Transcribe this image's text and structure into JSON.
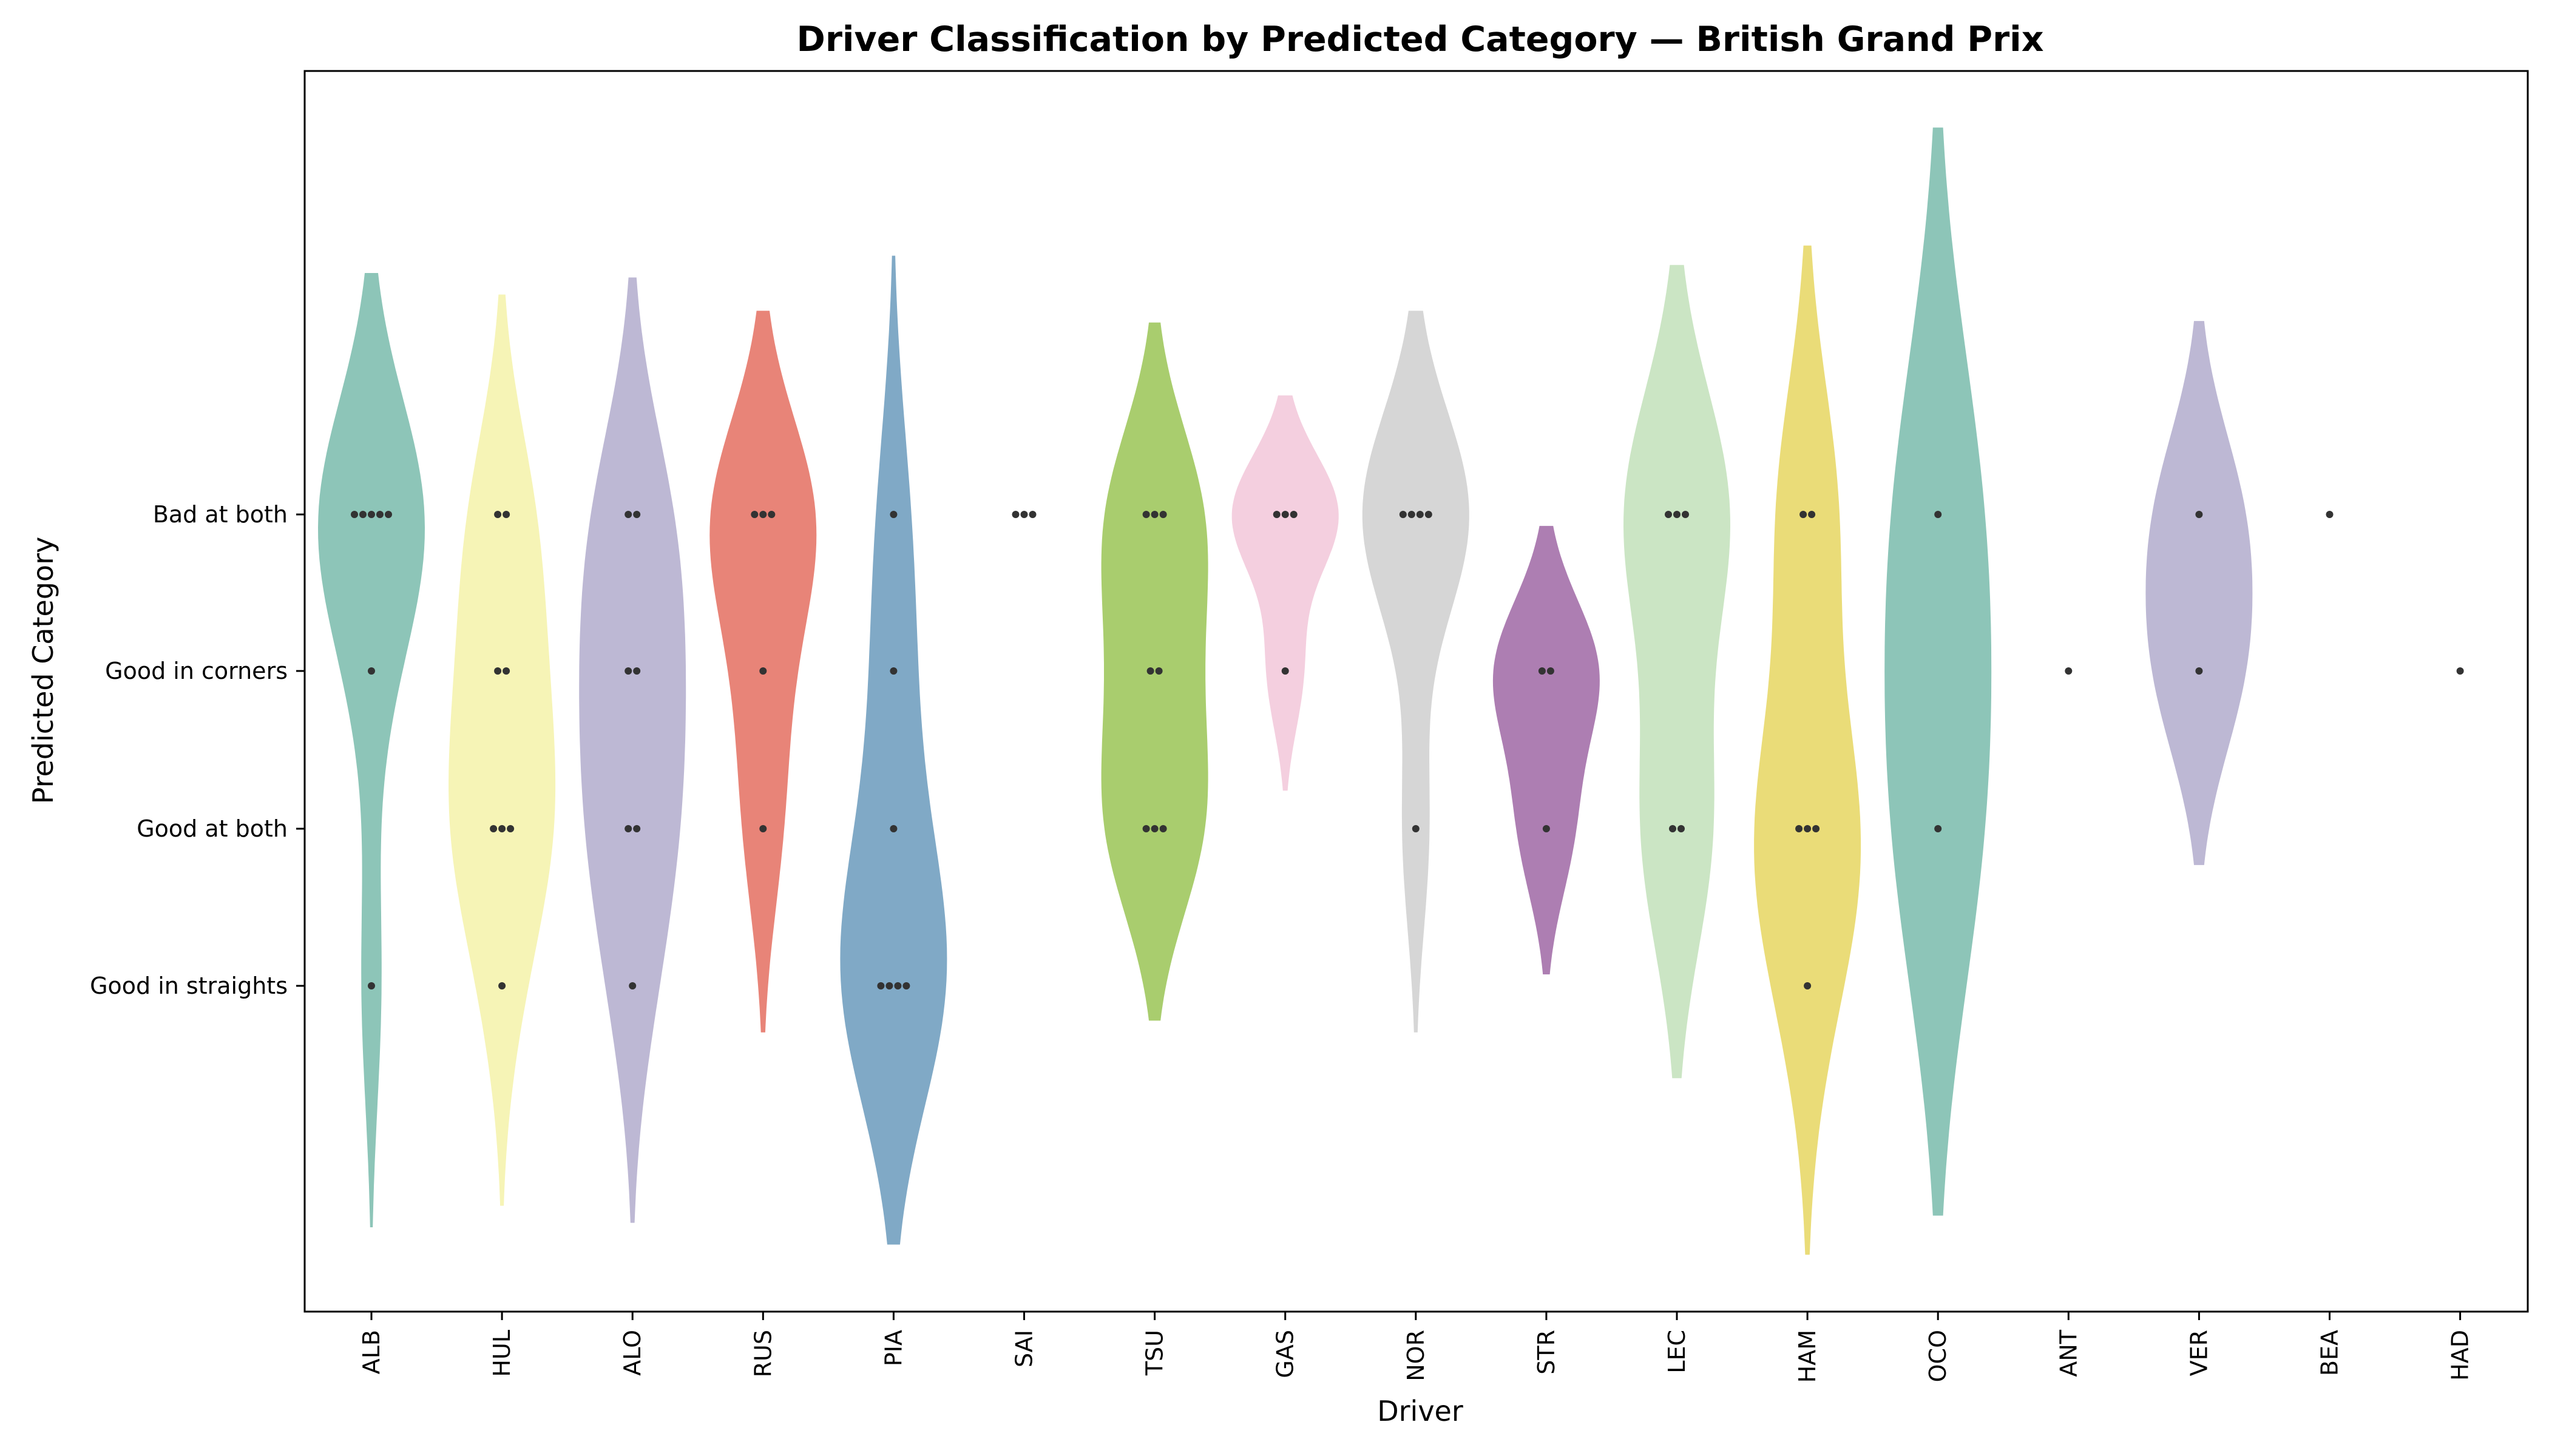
{
  "chart_data": {
    "type": "violin",
    "title": "Driver Classification by Predicted Category — British Grand Prix",
    "xlabel": "Driver",
    "ylabel": "Predicted Category",
    "categories": [
      "Good in straights",
      "Good at both",
      "Good in corners",
      "Bad at both"
    ],
    "drivers": [
      {
        "name": "ALB",
        "color": "#8dc5b8",
        "counts": {
          "Bad at both": 5,
          "Good in corners": 1,
          "Good at both": 0,
          "Good in straights": 1
        }
      },
      {
        "name": "HUL",
        "color": "#f6f4b6",
        "counts": {
          "Bad at both": 2,
          "Good in corners": 2,
          "Good at both": 3,
          "Good in straights": 1
        }
      },
      {
        "name": "ALO",
        "color": "#bdb8d4",
        "counts": {
          "Bad at both": 2,
          "Good in corners": 2,
          "Good at both": 2,
          "Good in straights": 1
        }
      },
      {
        "name": "RUS",
        "color": "#e88478",
        "counts": {
          "Bad at both": 3,
          "Good in corners": 1,
          "Good at both": 1,
          "Good in straights": 0
        }
      },
      {
        "name": "PIA",
        "color": "#80a9c6",
        "counts": {
          "Bad at both": 1,
          "Good in corners": 1,
          "Good at both": 1,
          "Good in straights": 4
        }
      },
      {
        "name": "SAI",
        "color": "#f3b06c",
        "counts": {
          "Bad at both": 3,
          "Good in corners": 0,
          "Good at both": 0,
          "Good in straights": 0
        }
      },
      {
        "name": "TSU",
        "color": "#a9cd6e",
        "counts": {
          "Bad at both": 3,
          "Good in corners": 2,
          "Good at both": 3,
          "Good in straights": 0
        }
      },
      {
        "name": "GAS",
        "color": "#f4cfdf",
        "counts": {
          "Bad at both": 3,
          "Good in corners": 1,
          "Good at both": 0,
          "Good in straights": 0
        }
      },
      {
        "name": "NOR",
        "color": "#d6d6d6",
        "counts": {
          "Bad at both": 4,
          "Good in corners": 0,
          "Good at both": 1,
          "Good in straights": 0
        }
      },
      {
        "name": "STR",
        "color": "#ad7eb2",
        "counts": {
          "Bad at both": 0,
          "Good in corners": 2,
          "Good at both": 1,
          "Good in straights": 0
        }
      },
      {
        "name": "LEC",
        "color": "#cbe5c4",
        "counts": {
          "Bad at both": 3,
          "Good in corners": 0,
          "Good at both": 2,
          "Good in straights": 0
        }
      },
      {
        "name": "HAM",
        "color": "#eadc78",
        "counts": {
          "Bad at both": 2,
          "Good in corners": 0,
          "Good at both": 3,
          "Good in straights": 1
        }
      },
      {
        "name": "OCO",
        "color": "#8dc5b8",
        "counts": {
          "Bad at both": 1,
          "Good in corners": 0,
          "Good at both": 1,
          "Good in straights": 0
        }
      },
      {
        "name": "ANT",
        "color": "#f6f4b6",
        "counts": {
          "Bad at both": 0,
          "Good in corners": 1,
          "Good at both": 0,
          "Good in straights": 0
        }
      },
      {
        "name": "VER",
        "color": "#bdb8d4",
        "counts": {
          "Bad at both": 1,
          "Good in corners": 1,
          "Good at both": 0,
          "Good in straights": 0
        }
      },
      {
        "name": "BEA",
        "color": "#e88478",
        "counts": {
          "Bad at both": 1,
          "Good in corners": 0,
          "Good at both": 0,
          "Good in straights": 0
        }
      },
      {
        "name": "HAD",
        "color": "#80a9c6",
        "counts": {
          "Bad at both": 0,
          "Good in corners": 1,
          "Good at both": 0,
          "Good in straights": 0
        }
      }
    ],
    "grid": false,
    "legend": "none"
  }
}
